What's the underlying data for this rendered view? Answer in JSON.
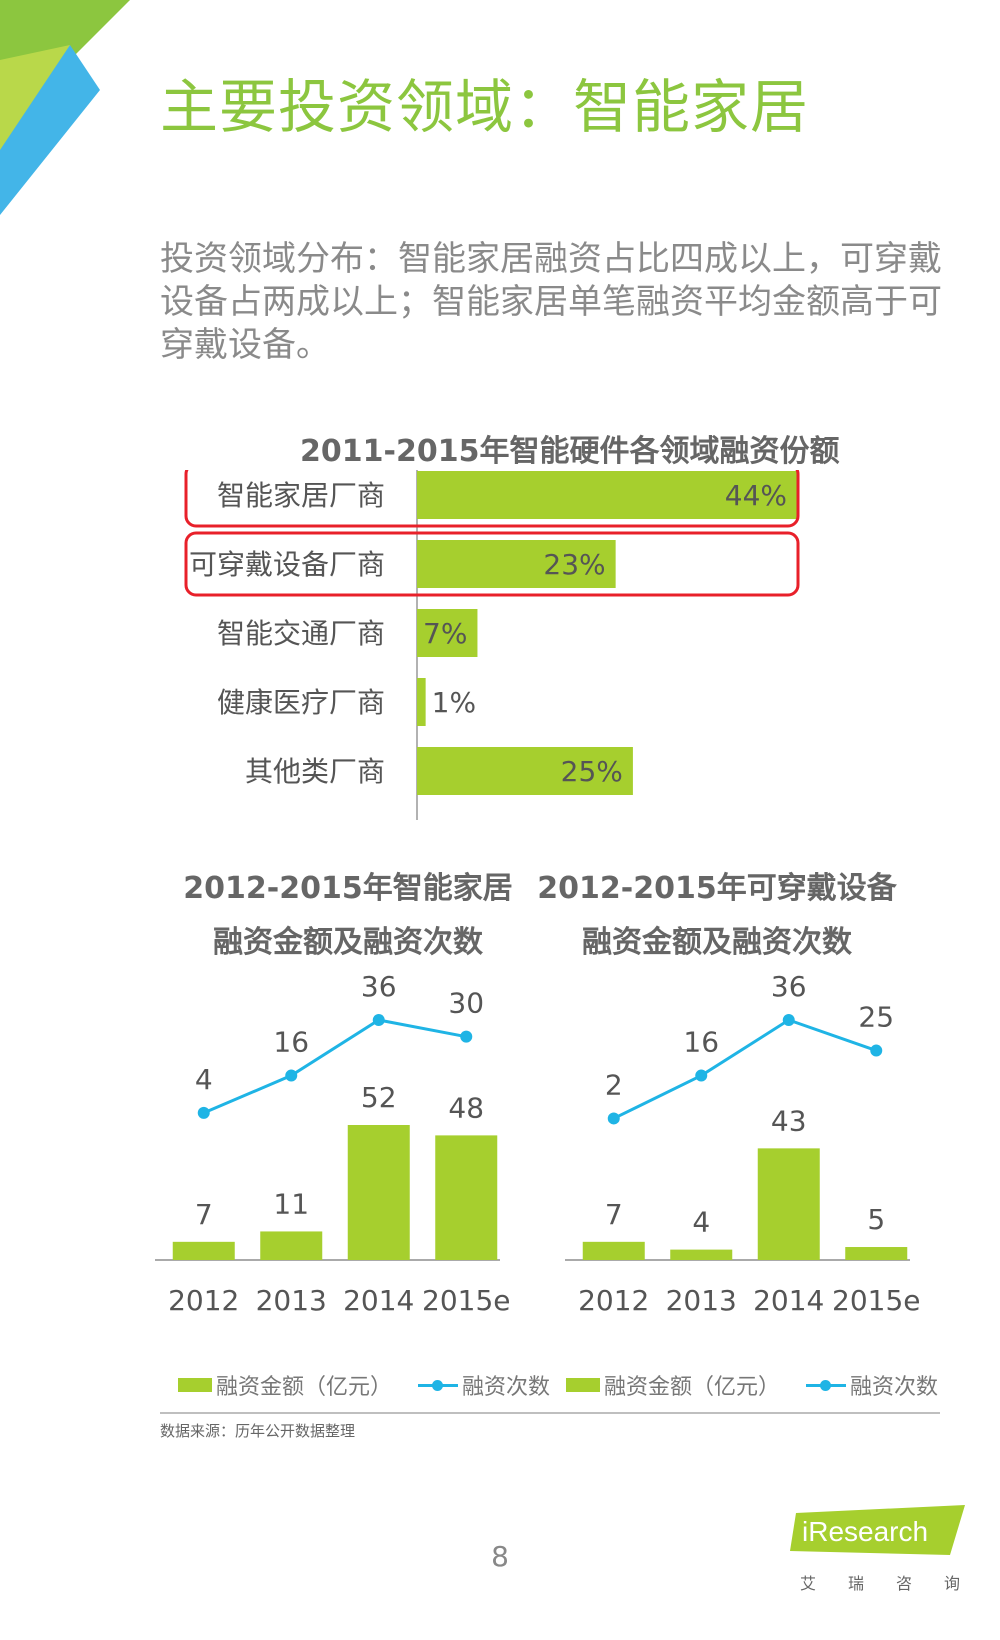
{
  "page": {
    "title": "主要投资领域：智能家居",
    "subtitle": "投资领域分布：智能家居融资占比四成以上，可穿戴设备占两成以上；智能家居单笔融资平均金额高于可穿戴设备。",
    "source": "数据来源：历年公开数据整理",
    "page_number": "8",
    "logo_text": "iResearch",
    "logo_sub": [
      "艾",
      "瑞",
      "咨",
      "询"
    ]
  },
  "colors": {
    "accent_green": "#8cc63f",
    "bar_green": "#a6cf2e",
    "line_blue": "#1fb4e5",
    "highlight_red": "#e8202a",
    "corner_blue": "#43b5e8"
  },
  "chart_data": [
    {
      "type": "bar",
      "orientation": "horizontal",
      "title": "2011-2015年智能硬件各领域融资份额",
      "categories": [
        "智能家居厂商",
        "可穿戴设备厂商",
        "智能交通厂商",
        "健康医疗厂商",
        "其他类厂商"
      ],
      "values": [
        44,
        23,
        7,
        1,
        25
      ],
      "value_labels": [
        "44%",
        "23%",
        "7%",
        "1%",
        "25%"
      ],
      "highlighted": [
        "智能家居厂商",
        "可穿戴设备厂商"
      ],
      "xlim": [
        0,
        44
      ],
      "grid": false
    },
    {
      "type": "bar",
      "title": "2012-2015年智能家居\n融资金额及融资次数",
      "title_lines": [
        "2012-2015年智能家居",
        "融资金额及融资次数"
      ],
      "categories": [
        "2012",
        "2013",
        "2014",
        "2015e"
      ],
      "series": [
        {
          "name": "融资金额（亿元）",
          "type": "bar",
          "values": [
            7,
            11,
            52,
            48
          ]
        },
        {
          "name": "融资次数",
          "type": "line",
          "values": [
            4,
            16,
            36,
            30
          ]
        }
      ],
      "legend_position": "bottom"
    },
    {
      "type": "bar",
      "title": "2012-2015年可穿戴设备\n融资金额及融资次数",
      "title_lines": [
        "2012-2015年可穿戴设备",
        "融资金额及融资次数"
      ],
      "categories": [
        "2012",
        "2013",
        "2014",
        "2015e"
      ],
      "series": [
        {
          "name": "融资金额（亿元）",
          "type": "bar",
          "values": [
            7,
            4,
            43,
            5
          ]
        },
        {
          "name": "融资次数",
          "type": "line",
          "values": [
            2,
            16,
            36,
            25
          ]
        }
      ],
      "legend_position": "bottom"
    }
  ]
}
